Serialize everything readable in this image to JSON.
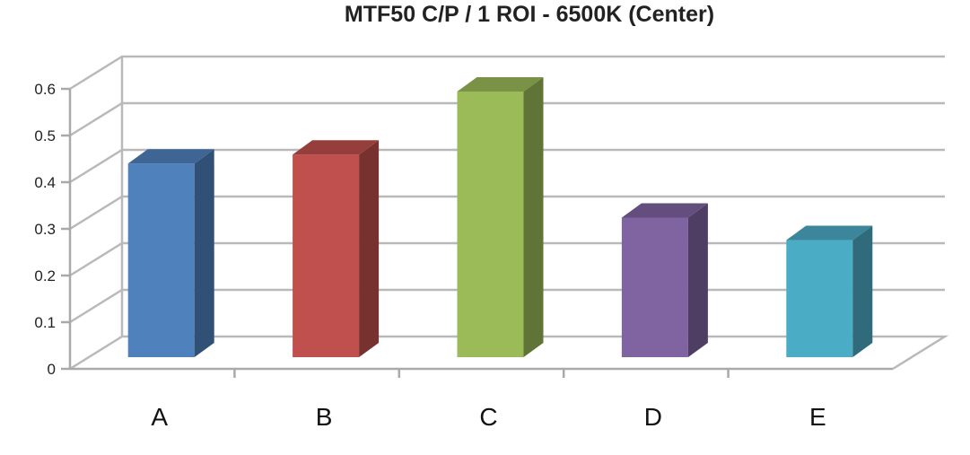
{
  "chart_data": {
    "type": "bar",
    "title": "MTF50 C/P / 1 ROI - 6500K (Center)",
    "categories": [
      "A",
      "B",
      "C",
      "D",
      "E"
    ],
    "values": [
      0.43,
      0.45,
      0.59,
      0.31,
      0.26
    ],
    "ylim": [
      0,
      0.6
    ],
    "yticks": [
      "0",
      "0.1",
      "0.2",
      "0.3",
      "0.4",
      "0.5",
      "0.6"
    ],
    "grid": true,
    "legend": "none",
    "style": "3d-column",
    "colors": [
      "#4f81bd",
      "#c0504d",
      "#9bbb59",
      "#8064a2",
      "#4bacc6"
    ]
  }
}
